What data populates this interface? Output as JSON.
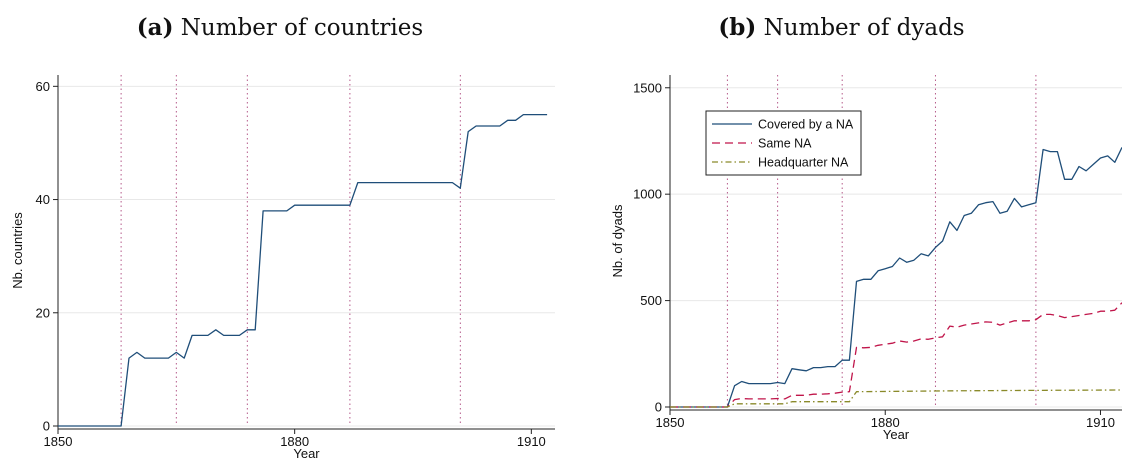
{
  "panels": [
    {
      "tag": "(a)",
      "title": "Number of countries"
    },
    {
      "tag": "(b)",
      "title": "Number of dyads"
    }
  ],
  "colors": {
    "navy": "#1f4e79",
    "maroon": "#c0154a",
    "olive": "#8a8a2a",
    "vline": "#b55a8a",
    "grid": "#e8e8e8"
  },
  "chart_data": [
    {
      "type": "line",
      "xlabel": "Year",
      "ylabel": "Nb. countries",
      "xlim": [
        1850,
        1913
      ],
      "ylim": [
        0,
        62
      ],
      "xticks": [
        1850,
        1880,
        1910
      ],
      "yticks": [
        0,
        20,
        40,
        60
      ],
      "vlines": [
        1858,
        1865,
        1874,
        1887,
        1901
      ],
      "grid": true,
      "series": [
        {
          "color": "#1f4e79",
          "dash": "",
          "x": [
            1850,
            1851,
            1852,
            1853,
            1854,
            1855,
            1856,
            1857,
            1858,
            1859,
            1860,
            1861,
            1862,
            1863,
            1864,
            1865,
            1866,
            1867,
            1868,
            1869,
            1870,
            1871,
            1872,
            1873,
            1874,
            1875,
            1876,
            1877,
            1878,
            1879,
            1880,
            1881,
            1882,
            1883,
            1884,
            1885,
            1886,
            1887,
            1888,
            1889,
            1890,
            1891,
            1892,
            1893,
            1894,
            1895,
            1896,
            1897,
            1898,
            1899,
            1900,
            1901,
            1902,
            1903,
            1904,
            1905,
            1906,
            1907,
            1908,
            1909,
            1910,
            1911,
            1912
          ],
          "y": [
            0,
            0,
            0,
            0,
            0,
            0,
            0,
            0,
            0,
            12,
            13,
            12,
            12,
            12,
            12,
            13,
            12,
            16,
            16,
            16,
            17,
            16,
            16,
            16,
            17,
            17,
            38,
            38,
            38,
            38,
            39,
            39,
            39,
            39,
            39,
            39,
            39,
            39,
            43,
            43,
            43,
            43,
            43,
            43,
            43,
            43,
            43,
            43,
            43,
            43,
            43,
            42,
            52,
            53,
            53,
            53,
            53,
            54,
            54,
            55,
            55,
            55,
            55
          ]
        }
      ]
    },
    {
      "type": "line",
      "xlabel": "Year",
      "ylabel": "Nb. of dyads",
      "xlim": [
        1850,
        1913
      ],
      "ylim": [
        0,
        1560
      ],
      "xticks": [
        1850,
        1880,
        1910
      ],
      "yticks": [
        0,
        500,
        1000,
        1500
      ],
      "vlines": [
        1858,
        1865,
        1874,
        1887,
        1901
      ],
      "grid": true,
      "legend": "top-left",
      "series": [
        {
          "name": "Covered by a NA",
          "color": "#1f4e79",
          "dash": "",
          "x": [
            1850,
            1851,
            1852,
            1853,
            1854,
            1855,
            1856,
            1857,
            1858,
            1859,
            1860,
            1861,
            1862,
            1863,
            1864,
            1865,
            1866,
            1867,
            1868,
            1869,
            1870,
            1871,
            1872,
            1873,
            1874,
            1875,
            1876,
            1877,
            1878,
            1879,
            1880,
            1881,
            1882,
            1883,
            1884,
            1885,
            1886,
            1887,
            1888,
            1889,
            1890,
            1891,
            1892,
            1893,
            1894,
            1895,
            1896,
            1897,
            1898,
            1899,
            1900,
            1901,
            1902,
            1903,
            1904,
            1905,
            1906,
            1907,
            1908,
            1909,
            1910,
            1911,
            1912,
            1913
          ],
          "y": [
            0,
            0,
            0,
            0,
            0,
            0,
            0,
            0,
            0,
            100,
            120,
            110,
            110,
            110,
            110,
            115,
            110,
            180,
            175,
            170,
            185,
            185,
            190,
            190,
            220,
            220,
            590,
            600,
            600,
            640,
            650,
            660,
            700,
            680,
            690,
            720,
            710,
            750,
            780,
            870,
            830,
            900,
            910,
            950,
            960,
            965,
            910,
            920,
            980,
            940,
            950,
            960,
            1210,
            1200,
            1200,
            1070,
            1070,
            1130,
            1110,
            1140,
            1170,
            1180,
            1150,
            1220
          ]
        },
        {
          "name": "Same NA",
          "color": "#c0154a",
          "dash": "8,5",
          "x": [
            1850,
            1851,
            1852,
            1853,
            1854,
            1855,
            1856,
            1857,
            1858,
            1859,
            1860,
            1861,
            1862,
            1863,
            1864,
            1865,
            1866,
            1867,
            1868,
            1869,
            1870,
            1871,
            1872,
            1873,
            1874,
            1875,
            1876,
            1877,
            1878,
            1879,
            1880,
            1881,
            1882,
            1883,
            1884,
            1885,
            1886,
            1887,
            1888,
            1889,
            1890,
            1891,
            1892,
            1893,
            1894,
            1895,
            1896,
            1897,
            1898,
            1899,
            1900,
            1901,
            1902,
            1903,
            1904,
            1905,
            1906,
            1907,
            1908,
            1909,
            1910,
            1911,
            1912,
            1913
          ],
          "y": [
            0,
            0,
            0,
            0,
            0,
            0,
            0,
            0,
            0,
            35,
            40,
            38,
            38,
            38,
            38,
            40,
            38,
            55,
            55,
            55,
            60,
            60,
            62,
            65,
            70,
            72,
            280,
            278,
            280,
            290,
            295,
            300,
            310,
            305,
            310,
            320,
            318,
            325,
            330,
            380,
            375,
            385,
            390,
            395,
            400,
            398,
            385,
            395,
            405,
            405,
            405,
            410,
            435,
            435,
            430,
            420,
            425,
            430,
            435,
            440,
            450,
            450,
            455,
            490
          ]
        },
        {
          "name": "Headquarter NA",
          "color": "#8a8a2a",
          "dash": "6,3,1.5,3",
          "x": [
            1850,
            1858,
            1859,
            1866,
            1867,
            1875,
            1876,
            1890,
            1900,
            1913
          ],
          "y": [
            0,
            0,
            15,
            15,
            25,
            25,
            72,
            76,
            78,
            80
          ]
        }
      ]
    }
  ]
}
